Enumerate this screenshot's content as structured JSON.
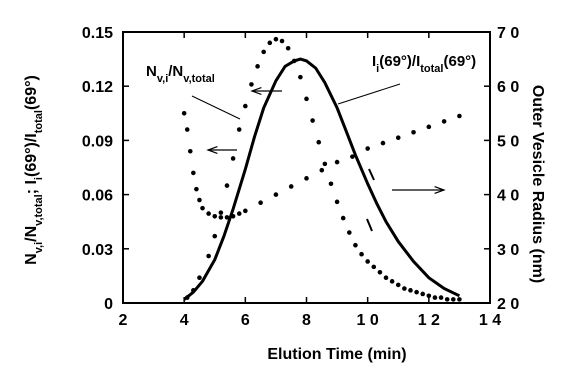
{
  "chart_data": {
    "type": "scatter",
    "xlabel": "Elution Time (min)",
    "ylabel_left": {
      "parts": [
        "N",
        "v,i",
        "/N",
        "v,total",
        "; I",
        "i",
        "(69°)/I",
        "total",
        "(69°)"
      ]
    },
    "ylabel_right": "Outer Vesicle Radius (nm)",
    "xlim": [
      2,
      14
    ],
    "ylim_left": [
      0,
      0.15
    ],
    "ylim_right": [
      20,
      70
    ],
    "x_ticks": [
      "2",
      "4",
      "6",
      "8",
      "1 0",
      "1 2",
      "1 4"
    ],
    "x_tick_values": [
      2,
      4,
      6,
      8,
      10,
      12,
      14
    ],
    "y_left_ticks": [
      "0",
      "0.03",
      "0.06",
      "0.09",
      "0.12",
      "0.15"
    ],
    "y_left_tick_values": [
      0,
      0.03,
      0.06,
      0.09,
      0.12,
      0.15
    ],
    "y_right_ticks": [
      "2 0",
      "3 0",
      "4 0",
      "5 0",
      "6 0",
      "7 0"
    ],
    "y_right_tick_values": [
      20,
      30,
      40,
      50,
      60,
      70
    ],
    "series": [
      {
        "name": "N_v,i/N_v,total",
        "axis": "left",
        "style": "dots",
        "x": [
          4.1,
          4.3,
          4.5,
          4.8,
          5.0,
          5.2,
          5.4,
          5.6,
          5.8,
          6.0,
          6.2,
          6.4,
          6.6,
          6.8,
          7.0,
          7.2,
          7.4,
          7.6,
          7.8,
          8.0,
          8.2,
          8.4,
          8.6,
          8.8,
          9.0,
          9.2,
          9.4,
          9.6,
          9.8,
          10.0,
          10.2,
          10.4,
          10.6,
          10.8,
          11.0,
          11.2,
          11.4,
          11.6,
          11.8,
          12.0,
          12.2,
          12.4,
          12.6,
          12.8,
          13.0
        ],
        "y": [
          0.003,
          0.007,
          0.014,
          0.026,
          0.037,
          0.05,
          0.065,
          0.08,
          0.096,
          0.109,
          0.121,
          0.131,
          0.139,
          0.144,
          0.146,
          0.145,
          0.141,
          0.134,
          0.125,
          0.113,
          0.101,
          0.089,
          0.077,
          0.066,
          0.056,
          0.047,
          0.039,
          0.032,
          0.027,
          0.023,
          0.02,
          0.017,
          0.014,
          0.012,
          0.01,
          0.008,
          0.007,
          0.006,
          0.005,
          0.004,
          0.003,
          0.003,
          0.002,
          0.002,
          0.002
        ]
      },
      {
        "name": "I_i(69°)/I_total(69°)",
        "axis": "left",
        "style": "line",
        "x": [
          4.0,
          4.3,
          4.6,
          5.0,
          5.3,
          5.6,
          6.0,
          6.3,
          6.6,
          7.0,
          7.3,
          7.6,
          7.8,
          8.0,
          8.3,
          8.6,
          9.0,
          9.3,
          9.6,
          10.0,
          10.3,
          10.6,
          11.0,
          11.5,
          12.0,
          12.5,
          13.0
        ],
        "y": [
          0.002,
          0.006,
          0.012,
          0.024,
          0.037,
          0.052,
          0.074,
          0.092,
          0.108,
          0.123,
          0.131,
          0.134,
          0.135,
          0.134,
          0.13,
          0.122,
          0.108,
          0.095,
          0.082,
          0.066,
          0.055,
          0.045,
          0.034,
          0.023,
          0.014,
          0.008,
          0.004
        ]
      },
      {
        "name": "Outer Vesicle Radius",
        "axis": "right",
        "style": "dots",
        "x": [
          4.0,
          4.1,
          4.2,
          4.3,
          4.4,
          4.5,
          4.6,
          4.8,
          5.0,
          5.2,
          5.4,
          5.6,
          5.8,
          6.0,
          6.5,
          7.0,
          7.5,
          8.0,
          8.5,
          9.0,
          9.5,
          10.0,
          10.5,
          11.0,
          11.5,
          12.0,
          12.5,
          13.0
        ],
        "y": [
          55.0,
          52.0,
          48.0,
          44.0,
          41.0,
          39.0,
          37.5,
          36.5,
          36.0,
          35.8,
          35.8,
          36.0,
          36.5,
          37.0,
          38.5,
          40.0,
          41.5,
          43.0,
          44.5,
          46.0,
          47.0,
          48.5,
          49.5,
          50.5,
          51.5,
          52.5,
          53.5,
          54.5
        ]
      }
    ],
    "annotations": [
      {
        "text_main": "N",
        "text_sub1": "v,i",
        "text_mid": "/N",
        "text_sub2": "v,total"
      },
      {
        "text_main": "I",
        "text_sub1": "i",
        "text_mid": "(69°)/I",
        "text_sub2": "total",
        "text_end": "(69°)"
      }
    ],
    "grid": false,
    "legend": "none"
  }
}
